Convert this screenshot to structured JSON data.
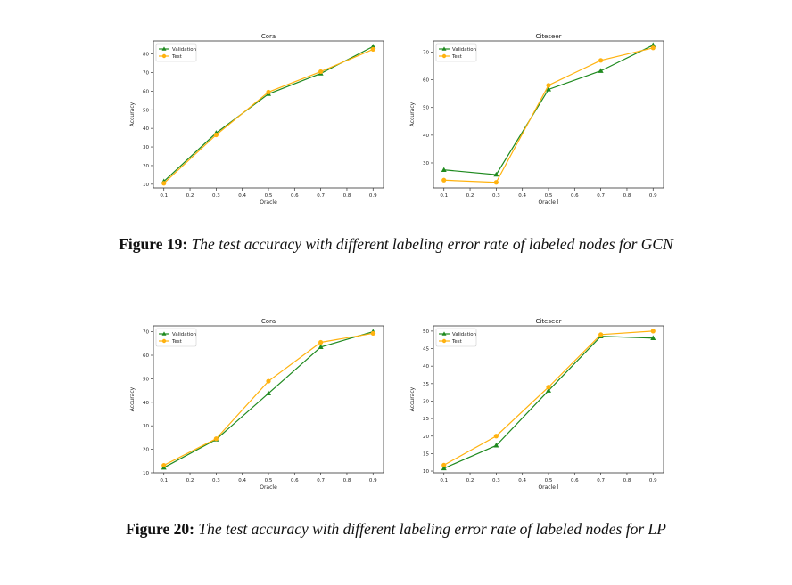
{
  "colors": {
    "validation": "#1f8a1f",
    "test": "#ffb20f",
    "axes": "#333333"
  },
  "figures": [
    {
      "label": "Figure 19:",
      "text": "The test accuracy with different labeling error rate of labeled nodes for GCN"
    },
    {
      "label": "Figure 20:",
      "text": "The test accuracy with different labeling error rate of labeled nodes for LP"
    }
  ],
  "chart_data": [
    {
      "type": "line",
      "title": "Cora",
      "xlabel": "Oracle",
      "ylabel": "Accuracy",
      "x": [
        0.1,
        0.3,
        0.5,
        0.7,
        0.9
      ],
      "xticks": [
        0.1,
        0.2,
        0.3,
        0.4,
        0.5,
        0.6,
        0.7,
        0.8,
        0.9
      ],
      "xlim": [
        0.06,
        0.94
      ],
      "ylim": [
        8,
        87
      ],
      "yticks": [
        10,
        20,
        30,
        40,
        50,
        60,
        70,
        80
      ],
      "legend": "top-left",
      "grid": false,
      "series": [
        {
          "name": "Validation",
          "marker": "triangle",
          "values": [
            11.5,
            37.5,
            58.5,
            69.5,
            84
          ]
        },
        {
          "name": "Test",
          "marker": "circle",
          "values": [
            10.5,
            36.5,
            59.5,
            70.5,
            82.5
          ]
        }
      ]
    },
    {
      "type": "line",
      "title": "Citeseer",
      "xlabel": "Oracle l",
      "ylabel": "Accuracy",
      "x": [
        0.1,
        0.3,
        0.5,
        0.7,
        0.9
      ],
      "xticks": [
        0.1,
        0.2,
        0.3,
        0.4,
        0.5,
        0.6,
        0.7,
        0.8,
        0.9
      ],
      "xlim": [
        0.06,
        0.94
      ],
      "ylim": [
        21,
        74
      ],
      "yticks": [
        30,
        40,
        50,
        60,
        70
      ],
      "legend": "top-left",
      "grid": false,
      "series": [
        {
          "name": "Validation",
          "marker": "triangle",
          "values": [
            27.5,
            25.8,
            56.5,
            63.2,
            72.5
          ]
        },
        {
          "name": "Test",
          "marker": "circle",
          "values": [
            23.8,
            23,
            58,
            67,
            71.5
          ]
        }
      ]
    },
    {
      "type": "line",
      "title": "Cora",
      "xlabel": "Oracle",
      "ylabel": "Accuracy",
      "x": [
        0.1,
        0.3,
        0.5,
        0.7,
        0.9
      ],
      "xticks": [
        0.1,
        0.2,
        0.3,
        0.4,
        0.5,
        0.6,
        0.7,
        0.8,
        0.9
      ],
      "xlim": [
        0.06,
        0.94
      ],
      "ylim": [
        10,
        72.5
      ],
      "yticks": [
        10,
        20,
        30,
        40,
        50,
        60,
        70
      ],
      "legend": "top-left",
      "grid": false,
      "series": [
        {
          "name": "Validation",
          "marker": "triangle",
          "values": [
            12.2,
            24.2,
            43.8,
            63.5,
            70
          ]
        },
        {
          "name": "Test",
          "marker": "circle",
          "values": [
            13.2,
            24.5,
            49,
            65.5,
            69.3
          ]
        }
      ]
    },
    {
      "type": "line",
      "title": "Citeseer",
      "xlabel": "Oracle l",
      "ylabel": "Accuracy",
      "x": [
        0.1,
        0.3,
        0.5,
        0.7,
        0.9
      ],
      "xticks": [
        0.1,
        0.2,
        0.3,
        0.4,
        0.5,
        0.6,
        0.7,
        0.8,
        0.9
      ],
      "xlim": [
        0.06,
        0.94
      ],
      "ylim": [
        9.5,
        51.5
      ],
      "yticks": [
        10,
        15,
        20,
        25,
        30,
        35,
        40,
        45,
        50
      ],
      "legend": "top-left",
      "grid": false,
      "series": [
        {
          "name": "Validation",
          "marker": "triangle",
          "values": [
            10.8,
            17.3,
            33,
            48.5,
            48
          ]
        },
        {
          "name": "Test",
          "marker": "circle",
          "values": [
            11.7,
            20,
            34,
            49,
            50
          ]
        }
      ]
    }
  ]
}
